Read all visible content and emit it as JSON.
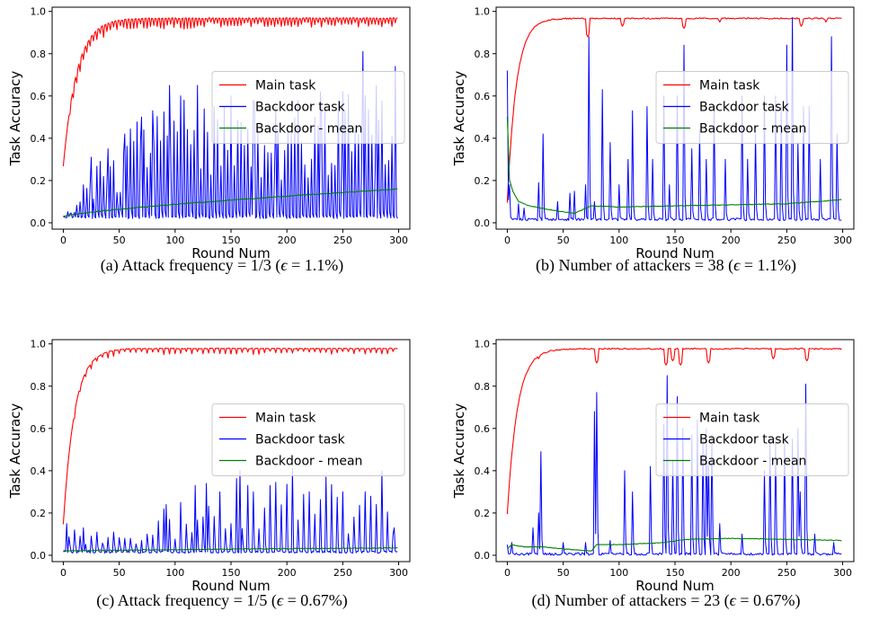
{
  "figure": {
    "panels": [
      {
        "caption": {
          "label": "(a)",
          "pre": "Attack frequency = 1/3 (",
          "eps": "ϵ",
          "post": " = 1.1%)"
        },
        "legend": [
          "Main task",
          "Backdoor task",
          "Backdoor - mean"
        ]
      },
      {
        "caption": {
          "label": "(b)",
          "pre": "Number of attackers = 38 (",
          "eps": "ϵ",
          "post": " = 1.1%)"
        },
        "legend": [
          "Main task",
          "Backdoor task",
          "Backdoor - mean"
        ]
      },
      {
        "caption": {
          "label": "(c)",
          "pre": "Attack frequency = 1/5 (",
          "eps": "ϵ",
          "post": " = 0.67%)"
        },
        "legend": [
          "Main task",
          "Backdoor task",
          "Backdoor - mean"
        ]
      },
      {
        "caption": {
          "label": "(d)",
          "pre": "Number of attackers = 23 (",
          "eps": "ϵ",
          "post": " = 0.67%)"
        },
        "legend": [
          "Main task",
          "Backdoor task",
          "Backdoor - mean"
        ]
      }
    ]
  },
  "chart_data": [
    {
      "type": "line",
      "xlabel": "Round Num",
      "ylabel": "Task Accuracy",
      "xlim": [
        -10,
        310
      ],
      "ylim": [
        -0.03,
        1.02
      ],
      "xticks": [
        0,
        50,
        100,
        150,
        200,
        250,
        300
      ],
      "yticks": [
        0.0,
        0.2,
        0.4,
        0.6,
        0.8,
        1.0
      ],
      "grid": false,
      "legend_position": "center-right",
      "series": [
        {
          "name": "Main task",
          "color": "#ff0000",
          "start": 0.27,
          "plateau": 0.97,
          "tau": 12,
          "dips": "periodic3",
          "dip_depth": 0.03
        },
        {
          "name": "Backdoor task",
          "color": "#0000ff",
          "pattern": "periodic",
          "period": 3,
          "baseline": 0.02,
          "peaks": [
            [
              10,
              0.05
            ],
            [
              18,
              0.18
            ],
            [
              25,
              0.31
            ],
            [
              40,
              0.35
            ],
            [
              55,
              0.42
            ],
            [
              70,
              0.5
            ],
            [
              80,
              0.53
            ],
            [
              95,
              0.65
            ],
            [
              105,
              0.6
            ],
            [
              120,
              0.65
            ],
            [
              135,
              0.55
            ],
            [
              150,
              0.6
            ],
            [
              170,
              0.58
            ],
            [
              190,
              0.55
            ],
            [
              210,
              0.58
            ],
            [
              230,
              0.62
            ],
            [
              250,
              0.62
            ],
            [
              268,
              0.81
            ],
            [
              280,
              0.65
            ],
            [
              297,
              0.74
            ]
          ]
        },
        {
          "name": "Backdoor - mean",
          "color": "#008000",
          "start": 0.03,
          "end": 0.16
        }
      ]
    },
    {
      "type": "line",
      "xlabel": "Round Num",
      "ylabel": "Task Accuracy",
      "xlim": [
        -10,
        310
      ],
      "ylim": [
        -0.03,
        1.02
      ],
      "xticks": [
        0,
        50,
        100,
        150,
        200,
        250,
        300
      ],
      "yticks": [
        0.0,
        0.2,
        0.4,
        0.6,
        0.8,
        1.0
      ],
      "grid": false,
      "legend_position": "center-right",
      "series": [
        {
          "name": "Main task",
          "color": "#ff0000",
          "start": 0.1,
          "plateau": 0.97,
          "tau": 8,
          "dip_points": [
            [
              72,
              0.88
            ],
            [
              103,
              0.93
            ],
            [
              158,
              0.92
            ],
            [
              190,
              0.95
            ],
            [
              263,
              0.93
            ],
            [
              285,
              0.95
            ]
          ]
        },
        {
          "name": "Backdoor task",
          "color": "#0000ff",
          "pattern": "sparse",
          "baseline": 0.01,
          "spikes": [
            [
              0,
              0.72
            ],
            [
              2,
              0.18
            ],
            [
              10,
              0.09
            ],
            [
              15,
              0.07
            ],
            [
              28,
              0.19
            ],
            [
              32,
              0.42
            ],
            [
              45,
              0.1
            ],
            [
              56,
              0.14
            ],
            [
              60,
              0.15
            ],
            [
              70,
              0.18
            ],
            [
              73,
              0.88
            ],
            [
              78,
              0.1
            ],
            [
              85,
              0.63
            ],
            [
              92,
              0.38
            ],
            [
              100,
              0.18
            ],
            [
              108,
              0.3
            ],
            [
              112,
              0.53
            ],
            [
              125,
              0.55
            ],
            [
              130,
              0.3
            ],
            [
              140,
              0.6
            ],
            [
              145,
              0.18
            ],
            [
              152,
              0.6
            ],
            [
              158,
              0.84
            ],
            [
              165,
              0.35
            ],
            [
              172,
              0.44
            ],
            [
              178,
              0.3
            ],
            [
              185,
              0.55
            ],
            [
              195,
              0.3
            ],
            [
              210,
              0.6
            ],
            [
              215,
              0.3
            ],
            [
              222,
              0.42
            ],
            [
              230,
              0.6
            ],
            [
              240,
              0.6
            ],
            [
              245,
              0.55
            ],
            [
              250,
              0.84
            ],
            [
              255,
              0.97
            ],
            [
              260,
              0.38
            ],
            [
              265,
              0.55
            ],
            [
              270,
              0.55
            ],
            [
              280,
              0.3
            ],
            [
              290,
              0.88
            ],
            [
              295,
              0.42
            ]
          ]
        },
        {
          "name": "Backdoor - mean",
          "color": "#008000",
          "points": [
            [
              0,
              0.5
            ],
            [
              2,
              0.2
            ],
            [
              5,
              0.15
            ],
            [
              10,
              0.1
            ],
            [
              20,
              0.08
            ],
            [
              40,
              0.06
            ],
            [
              60,
              0.045
            ],
            [
              75,
              0.08
            ],
            [
              100,
              0.075
            ],
            [
              150,
              0.08
            ],
            [
              200,
              0.085
            ],
            [
              250,
              0.09
            ],
            [
              300,
              0.11
            ]
          ]
        }
      ]
    },
    {
      "type": "line",
      "xlabel": "Round Num",
      "ylabel": "Task Accuracy",
      "xlim": [
        -10,
        310
      ],
      "ylim": [
        -0.03,
        1.02
      ],
      "xticks": [
        0,
        50,
        100,
        150,
        200,
        250,
        300
      ],
      "yticks": [
        0.0,
        0.2,
        0.4,
        0.6,
        0.8,
        1.0
      ],
      "grid": false,
      "legend_position": "center-right",
      "series": [
        {
          "name": "Main task",
          "color": "#ff0000",
          "start": 0.15,
          "plateau": 0.98,
          "tau": 10,
          "dips": "periodic5",
          "dip_depth": 0.02
        },
        {
          "name": "Backdoor task",
          "color": "#0000ff",
          "pattern": "periodic",
          "period": 5,
          "baseline": 0.01,
          "peaks": [
            [
              3,
              0.15
            ],
            [
              10,
              0.12
            ],
            [
              18,
              0.13
            ],
            [
              30,
              0.11
            ],
            [
              45,
              0.11
            ],
            [
              60,
              0.08
            ],
            [
              75,
              0.1
            ],
            [
              92,
              0.24
            ],
            [
              105,
              0.25
            ],
            [
              118,
              0.33
            ],
            [
              128,
              0.34
            ],
            [
              140,
              0.3
            ],
            [
              158,
              0.4
            ],
            [
              170,
              0.3
            ],
            [
              185,
              0.33
            ],
            [
              205,
              0.41
            ],
            [
              220,
              0.3
            ],
            [
              235,
              0.37
            ],
            [
              250,
              0.3
            ],
            [
              270,
              0.3
            ],
            [
              285,
              0.4
            ],
            [
              296,
              0.13
            ]
          ]
        },
        {
          "name": "Backdoor - mean",
          "color": "#008000",
          "start": 0.02,
          "end": 0.035
        }
      ]
    },
    {
      "type": "line",
      "xlabel": "Round Num",
      "ylabel": "Task Accuracy",
      "xlim": [
        -10,
        310
      ],
      "ylim": [
        -0.03,
        1.02
      ],
      "xticks": [
        0,
        50,
        100,
        150,
        200,
        250,
        300
      ],
      "yticks": [
        0.0,
        0.2,
        0.4,
        0.6,
        0.8,
        1.0
      ],
      "grid": false,
      "legend_position": "center-right",
      "series": [
        {
          "name": "Main task",
          "color": "#ff0000",
          "start": 0.2,
          "plateau": 0.98,
          "tau": 9,
          "dip_points": [
            [
              22,
              0.92
            ],
            [
              28,
              0.93
            ],
            [
              80,
              0.91
            ],
            [
              142,
              0.9
            ],
            [
              148,
              0.92
            ],
            [
              155,
              0.9
            ],
            [
              180,
              0.91
            ],
            [
              238,
              0.93
            ],
            [
              268,
              0.92
            ]
          ]
        },
        {
          "name": "Backdoor task",
          "color": "#0000ff",
          "pattern": "sparse",
          "baseline": 0.0,
          "spikes": [
            [
              0,
              0.05
            ],
            [
              4,
              0.06
            ],
            [
              23,
              0.13
            ],
            [
              28,
              0.2
            ],
            [
              30,
              0.49
            ],
            [
              50,
              0.06
            ],
            [
              70,
              0.06
            ],
            [
              78,
              0.68
            ],
            [
              80,
              0.77
            ],
            [
              92,
              0.07
            ],
            [
              105,
              0.4
            ],
            [
              112,
              0.3
            ],
            [
              128,
              0.42
            ],
            [
              140,
              0.62
            ],
            [
              143,
              0.85
            ],
            [
              148,
              0.45
            ],
            [
              152,
              0.75
            ],
            [
              157,
              0.6
            ],
            [
              165,
              0.57
            ],
            [
              170,
              0.64
            ],
            [
              175,
              0.55
            ],
            [
              178,
              0.6
            ],
            [
              180,
              0.45
            ],
            [
              183,
              0.57
            ],
            [
              190,
              0.15
            ],
            [
              210,
              0.1
            ],
            [
              230,
              0.4
            ],
            [
              235,
              0.55
            ],
            [
              240,
              0.54
            ],
            [
              248,
              0.55
            ],
            [
              255,
              0.55
            ],
            [
              260,
              0.6
            ],
            [
              262,
              0.3
            ],
            [
              267,
              0.81
            ],
            [
              275,
              0.1
            ],
            [
              292,
              0.06
            ]
          ]
        },
        {
          "name": "Backdoor - mean",
          "color": "#008000",
          "points": [
            [
              0,
              0.03
            ],
            [
              4,
              0.05
            ],
            [
              15,
              0.04
            ],
            [
              30,
              0.04
            ],
            [
              50,
              0.03
            ],
            [
              75,
              0.02
            ],
            [
              80,
              0.05
            ],
            [
              100,
              0.05
            ],
            [
              140,
              0.06
            ],
            [
              160,
              0.075
            ],
            [
              200,
              0.08
            ],
            [
              250,
              0.075
            ],
            [
              300,
              0.07
            ]
          ]
        }
      ]
    }
  ]
}
